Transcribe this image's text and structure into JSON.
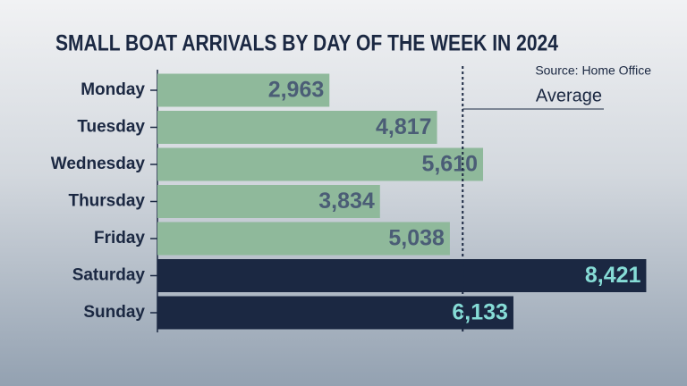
{
  "chart_data": {
    "type": "bar",
    "orientation": "horizontal",
    "title": "SMALL BOAT ARRIVALS BY DAY OF THE WEEK IN 2024",
    "source": "Source: Home Office",
    "average_label": "Average",
    "average": 5259,
    "categories": [
      "Monday",
      "Tuesday",
      "Wednesday",
      "Thursday",
      "Friday",
      "Saturday",
      "Sunday"
    ],
    "values": [
      2963,
      4817,
      5610,
      3834,
      5038,
      8421,
      6133
    ],
    "value_labels": [
      "2,963",
      "4,817",
      "5,610",
      "3,834",
      "5,038",
      "8,421",
      "6,133"
    ],
    "colors": [
      "#8fb99b",
      "#8fb99b",
      "#8fb99b",
      "#8fb99b",
      "#8fb99b",
      "#1b2842",
      "#1b2842"
    ],
    "label_colors": [
      "#4b5d76",
      "#4b5d76",
      "#4b5d76",
      "#4b5d76",
      "#4b5d76",
      "#86dcd6",
      "#86dcd6"
    ],
    "xlim": [
      0,
      9000
    ]
  }
}
